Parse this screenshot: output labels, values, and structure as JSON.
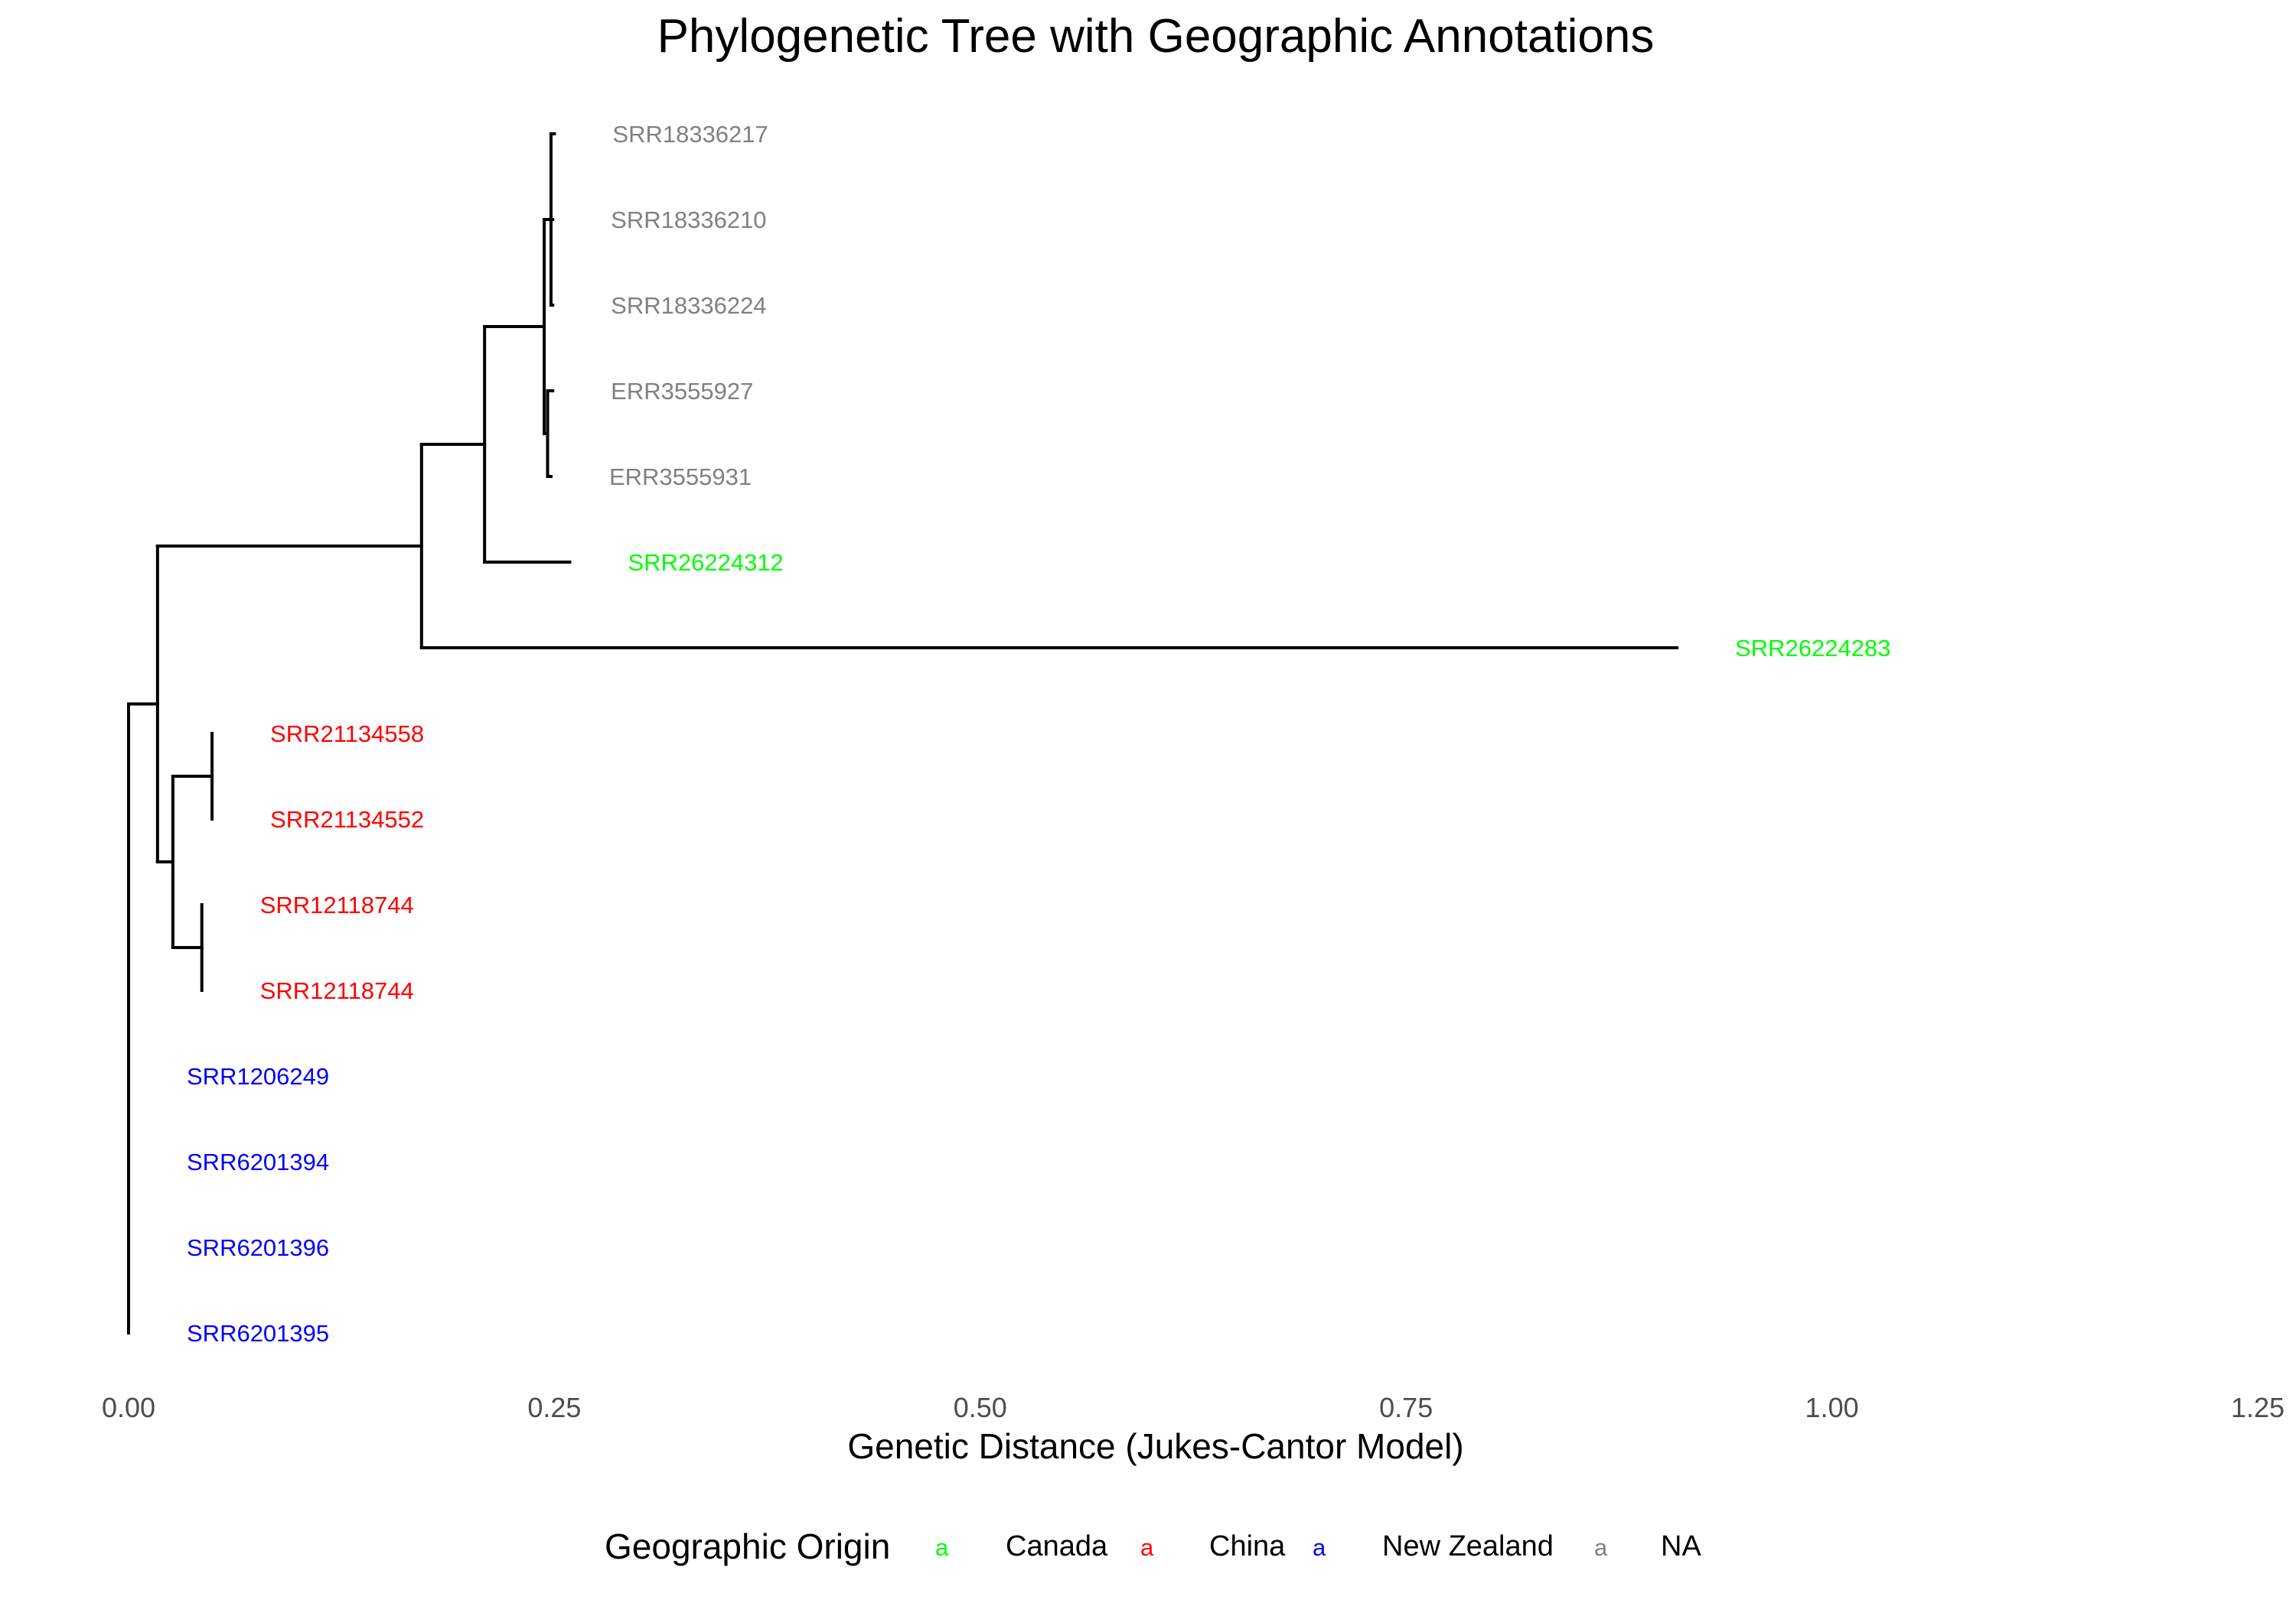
{
  "chart_data": {
    "type": "phylogenetic-tree",
    "title": "Phylogenetic Tree with Geographic Annotations",
    "xlabel": "Genetic Distance (Jukes-Cantor Model)",
    "xlim": [
      0,
      1.25
    ],
    "x_ticks": [
      "0.00",
      "0.25",
      "0.50",
      "0.75",
      "1.00",
      "1.25"
    ],
    "x_tick_values": [
      0,
      0.25,
      0.5,
      0.75,
      1.0,
      1.25
    ],
    "grid": false,
    "legend": {
      "title": "Geographic Origin",
      "position": "bottom",
      "key_glyph": "a",
      "entries": [
        {
          "label": "Canada",
          "color": "#00ff00"
        },
        {
          "label": "China",
          "color": "#ff0000"
        },
        {
          "label": "New Zealand",
          "color": "#0000ff"
        },
        {
          "label": "NA",
          "color": "#808080"
        }
      ]
    },
    "tips": [
      {
        "label": "SRR18336217",
        "origin": "NA",
        "distance": 0.25
      },
      {
        "label": "SRR18336210",
        "origin": "NA",
        "distance": 0.249
      },
      {
        "label": "SRR18336224",
        "origin": "NA",
        "distance": 0.249
      },
      {
        "label": "ERR3555927",
        "origin": "NA",
        "distance": 0.249
      },
      {
        "label": "ERR3555931",
        "origin": "NA",
        "distance": 0.248
      },
      {
        "label": "SRR26224312",
        "origin": "Canada",
        "distance": 0.259
      },
      {
        "label": "SRR26224283",
        "origin": "Canada",
        "distance": 0.909
      },
      {
        "label": "SRR21134558",
        "origin": "China",
        "distance": 0.049
      },
      {
        "label": "SRR21134552",
        "origin": "China",
        "distance": 0.049
      },
      {
        "label": "SRR12118744",
        "origin": "China",
        "distance": 0.043
      },
      {
        "label": "SRR12118744",
        "origin": "China",
        "distance": 0.043
      },
      {
        "label": "SRR1206249",
        "origin": "New Zealand",
        "distance": 0.0
      },
      {
        "label": "SRR6201394",
        "origin": "New Zealand",
        "distance": 0.0
      },
      {
        "label": "SRR6201396",
        "origin": "New Zealand",
        "distance": 0.0
      },
      {
        "label": "SRR6201395",
        "origin": "New Zealand",
        "distance": 0.0
      }
    ],
    "internal_nodes": [
      {
        "id": "root",
        "distance": 0.0,
        "children": [
          "nA",
          "t11",
          "t12",
          "t13",
          "t14"
        ]
      },
      {
        "id": "nA",
        "distance": 0.017,
        "children": [
          "nB",
          "nF"
        ]
      },
      {
        "id": "nB",
        "distance": 0.172,
        "children": [
          "nC",
          "t6"
        ]
      },
      {
        "id": "nC",
        "distance": 0.209,
        "children": [
          "nD",
          "t5"
        ]
      },
      {
        "id": "nD",
        "distance": 0.244,
        "children": [
          "nE",
          "nG"
        ]
      },
      {
        "id": "nE",
        "distance": 0.248,
        "children": [
          "t0",
          "t1",
          "t2"
        ]
      },
      {
        "id": "nG",
        "distance": 0.246,
        "children": [
          "t3",
          "t4"
        ]
      },
      {
        "id": "nF",
        "distance": 0.026,
        "children": [
          "nH",
          "nI"
        ]
      },
      {
        "id": "nH",
        "distance": 0.049,
        "children": [
          "t7",
          "t8"
        ]
      },
      {
        "id": "nI",
        "distance": 0.043,
        "children": [
          "t9",
          "t10"
        ]
      }
    ]
  }
}
